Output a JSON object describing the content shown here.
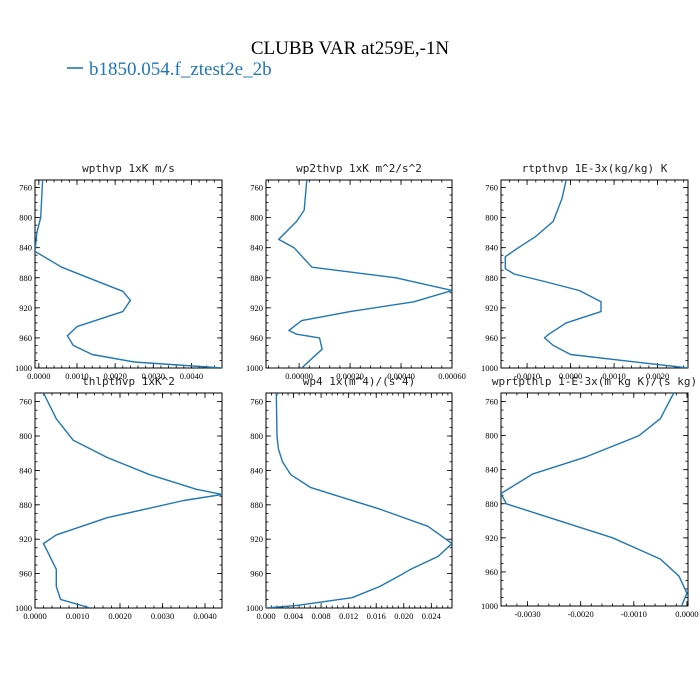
{
  "title": "CLUBB VAR at259E,-1N",
  "legend": [
    {
      "label": "b1850.054.f_ztest2e_2b",
      "color": "#1f77b4"
    }
  ],
  "chart_data": [
    {
      "type": "line",
      "title": "wpthvp  1xK m/s",
      "xlim": [
        -0.0001,
        0.0048
      ],
      "ylim": [
        1000,
        750
      ],
      "xticks": [
        0.0,
        0.001,
        0.002,
        0.003,
        0.004
      ],
      "xtick_labels": [
        "0.0000",
        "0.0010",
        "0.0020",
        "0.0030",
        "0.0040"
      ],
      "yticks": [
        760,
        800,
        840,
        880,
        920,
        960,
        1000
      ],
      "series": [
        {
          "color": "#1f77b4",
          "x": [
            0.0001,
            5e-05,
            -5e-05,
            -0.0001,
            0.0006,
            0.0013,
            0.0022,
            0.0024,
            0.0022,
            0.001,
            0.00075,
            0.0009,
            0.0014,
            0.0025,
            0.0048
          ],
          "y": [
            750,
            800,
            820,
            845,
            866,
            880,
            898,
            910,
            925,
            945,
            957,
            970,
            982,
            992,
            1000
          ]
        }
      ]
    },
    {
      "type": "line",
      "title": "wp2thvp  1xK m^2/s^2",
      "xlim": [
        -0.00013,
        0.0006
      ],
      "ylim": [
        1000,
        750
      ],
      "xticks": [
        0.0,
        0.0002,
        0.0004,
        0.0006
      ],
      "xtick_labels": [
        "0.00000",
        "0.00020",
        "0.00040",
        "0.00060"
      ],
      "yticks": [
        760,
        800,
        840,
        880,
        920,
        960,
        1000
      ],
      "series": [
        {
          "color": "#1f77b4",
          "x": [
            3e-05,
            2e-05,
            -1e-05,
            -8e-05,
            -2e-05,
            5e-05,
            0.00038,
            0.0006,
            0.00045,
            0.0002,
            1e-05,
            -4e-05,
            -1e-05,
            8e-05,
            9e-05,
            1e-05
          ],
          "y": [
            750,
            790,
            805,
            829,
            840,
            866,
            880,
            897,
            912,
            925,
            937,
            950,
            955,
            960,
            975,
            1000
          ]
        }
      ]
    },
    {
      "type": "line",
      "title": "rtpthvp  1E-3x(kg/kg) K",
      "xlim": [
        -0.0016,
        0.0027
      ],
      "ylim": [
        1000,
        750
      ],
      "xticks": [
        -0.001,
        0.0,
        0.001,
        0.002
      ],
      "xtick_labels": [
        "-0.0010",
        "0.0000",
        "0.0010",
        "0.0020"
      ],
      "yticks": [
        760,
        800,
        840,
        880,
        920,
        960,
        1000
      ],
      "series": [
        {
          "color": "#1f77b4",
          "x": [
            -0.0001,
            -0.0002,
            -0.0004,
            -0.0008,
            -0.0012,
            -0.0015,
            -0.0015,
            -0.0013,
            -0.0006,
            0.0002,
            0.0007,
            0.0007,
            -0.0001,
            -0.0005,
            -0.0006,
            -0.0004,
            0.0,
            0.0027
          ],
          "y": [
            750,
            775,
            805,
            825,
            840,
            852,
            868,
            875,
            885,
            897,
            912,
            925,
            940,
            955,
            960,
            970,
            982,
            1000
          ]
        }
      ]
    },
    {
      "type": "line",
      "title": "thlpthvp  1xK^2",
      "xlim": [
        0.0,
        0.0044
      ],
      "ylim": [
        1000,
        750
      ],
      "xticks": [
        0.0,
        0.001,
        0.002,
        0.003,
        0.004
      ],
      "xtick_labels": [
        "0.0000",
        "0.0010",
        "0.0020",
        "0.0030",
        "0.0040"
      ],
      "yticks": [
        760,
        800,
        840,
        880,
        920,
        960,
        1000
      ],
      "series": [
        {
          "color": "#1f77b4",
          "x": [
            0.0002,
            0.0005,
            0.0009,
            0.0017,
            0.0027,
            0.0038,
            0.0044,
            0.0035,
            0.0017,
            0.0005,
            0.0002,
            0.0003,
            0.0004,
            0.0005,
            0.0005,
            0.0006,
            0.0013
          ],
          "y": [
            750,
            780,
            805,
            825,
            845,
            862,
            868,
            875,
            895,
            915,
            925,
            935,
            945,
            955,
            975,
            990,
            1000
          ]
        }
      ]
    },
    {
      "type": "line",
      "title": "wp4  1x(m^4)/(s^4)",
      "xlim": [
        0.0,
        0.027
      ],
      "ylim": [
        1000,
        750
      ],
      "xticks": [
        0.0,
        0.004,
        0.008,
        0.012,
        0.016,
        0.02,
        0.024
      ],
      "xtick_labels": [
        "0.000",
        "0.004",
        "0.008",
        "0.012",
        "0.016",
        "0.020",
        "0.024"
      ],
      "yticks": [
        760,
        800,
        840,
        880,
        920,
        960,
        1000
      ],
      "series": [
        {
          "color": "#1f77b4",
          "x": [
            0.0015,
            0.0016,
            0.0018,
            0.0024,
            0.0036,
            0.0065,
            0.0105,
            0.0165,
            0.0235,
            0.027,
            0.025,
            0.021,
            0.0195,
            0.0165,
            0.0125,
            0.0045,
            0.0
          ],
          "y": [
            750,
            800,
            815,
            830,
            845,
            860,
            870,
            885,
            905,
            925,
            940,
            955,
            962,
            975,
            988,
            997,
            1000
          ]
        }
      ]
    },
    {
      "type": "line",
      "title": "wprtpthlp  1-E-3x(m kg K)/(s kg)",
      "xlim": [
        -0.0035,
        2e-05
      ],
      "ylim": [
        1000,
        750
      ],
      "xticks": [
        -0.003,
        -0.002,
        -0.001,
        0.0
      ],
      "xtick_labels": [
        "-0.0030",
        "-0.0020",
        "-0.0010",
        "0.0000"
      ],
      "yticks": [
        760,
        800,
        840,
        880,
        920,
        960,
        1000
      ],
      "series": [
        {
          "color": "#1f77b4",
          "x": [
            -0.00025,
            -0.0005,
            -0.0009,
            -0.0019,
            -0.0029,
            -0.0035,
            -0.0034,
            -0.0024,
            -0.0014,
            -0.0005,
            -0.00015,
            0.0,
            -0.0001
          ],
          "y": [
            750,
            780,
            800,
            825,
            845,
            868,
            880,
            900,
            920,
            945,
            965,
            985,
            1000
          ]
        }
      ]
    }
  ]
}
